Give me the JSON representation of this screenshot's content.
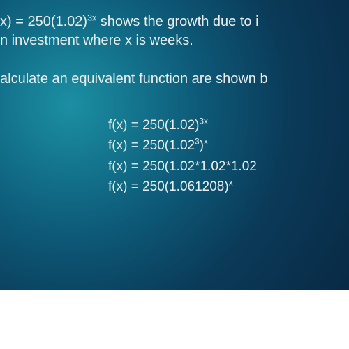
{
  "intro": {
    "line1_a": "x) = 250(1.02)",
    "line1_exp": "3x",
    "line1_b": " shows the growth due to i",
    "line2_a": "n investment where x is weeks."
  },
  "steps_label": "alculate an equivalent function are shown b",
  "equations": {
    "e1": {
      "pre": "f(x) = 250(1.02)",
      "sup": "3x",
      "post": ""
    },
    "e2": {
      "pre": "f(x) = 250(1.02",
      "sup": "3",
      "post": ")",
      "sup2": "x"
    },
    "e3": {
      "pre": "f(x) = 250(1.02*1.02*1.02",
      "sup": "",
      "post": ""
    },
    "e4": {
      "pre": "f(x) = 250(1.061208)",
      "sup": "x",
      "post": ""
    }
  }
}
